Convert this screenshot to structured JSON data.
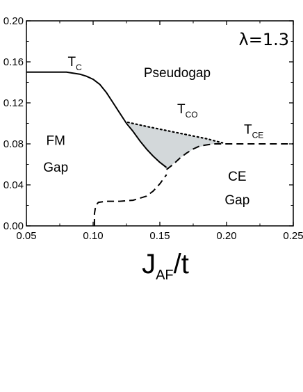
{
  "chart_data": {
    "type": "line",
    "xlim": [
      0.05,
      0.25
    ],
    "ylim": [
      0.0,
      0.2
    ],
    "x_ticks": [
      "0.05",
      "0.10",
      "0.15",
      "0.20",
      "0.25"
    ],
    "y_ticks": [
      "0.00",
      "0.04",
      "0.08",
      "0.12",
      "0.16",
      "0.20"
    ],
    "xlabel": {
      "main": "J",
      "sub": "AF",
      "suffix": "/t"
    },
    "parameter": {
      "symbol": "λ",
      "text": "=1.3"
    },
    "series": [
      {
        "label": {
          "main": "T",
          "sub": "C"
        },
        "style": "solid",
        "x": [
          0.05,
          0.06,
          0.07,
          0.08,
          0.09,
          0.095,
          0.1,
          0.105,
          0.11,
          0.115,
          0.12,
          0.125,
          0.13,
          0.135,
          0.14,
          0.145,
          0.15,
          0.155
        ],
        "y": [
          0.15,
          0.15,
          0.15,
          0.15,
          0.148,
          0.146,
          0.143,
          0.138,
          0.13,
          0.12,
          0.11,
          0.1,
          0.092,
          0.083,
          0.075,
          0.068,
          0.062,
          0.057
        ]
      },
      {
        "label": {
          "main": "T",
          "sub": "CO"
        },
        "style": "dotted",
        "x": [
          0.126,
          0.14,
          0.155,
          0.17,
          0.185,
          0.197
        ],
        "y": [
          0.101,
          0.097,
          0.093,
          0.089,
          0.085,
          0.081
        ]
      },
      {
        "label": {
          "main": "T",
          "sub": "CE"
        },
        "style": "dashed",
        "x": [
          0.155,
          0.16,
          0.165,
          0.17,
          0.175,
          0.18,
          0.185,
          0.19,
          0.2,
          0.21,
          0.22,
          0.23,
          0.24,
          0.25
        ],
        "y": [
          0.055,
          0.06,
          0.066,
          0.071,
          0.075,
          0.078,
          0.079,
          0.08,
          0.08,
          0.08,
          0.08,
          0.08,
          0.08,
          0.08
        ]
      },
      {
        "label": null,
        "style": "dashed",
        "x": [
          0.101,
          0.101,
          0.102,
          0.104,
          0.11,
          0.12,
          0.13,
          0.14,
          0.145,
          0.15,
          0.155
        ],
        "y": [
          0.0,
          0.012,
          0.02,
          0.023,
          0.024,
          0.024,
          0.025,
          0.029,
          0.034,
          0.041,
          0.05
        ]
      }
    ],
    "shaded_region": {
      "fill": "#d3d8da",
      "x": [
        0.126,
        0.197,
        0.185,
        0.175,
        0.165,
        0.155,
        0.15,
        0.145,
        0.14,
        0.135,
        0.13
      ],
      "y": [
        0.101,
        0.081,
        0.079,
        0.075,
        0.066,
        0.055,
        0.062,
        0.068,
        0.075,
        0.083,
        0.092
      ]
    },
    "region_labels": [
      {
        "text": "Pseudogap",
        "x": 0.163,
        "y": 0.145
      },
      {
        "text": "FM",
        "x": 0.072,
        "y": 0.079
      },
      {
        "text": "Gap",
        "x": 0.072,
        "y": 0.053
      },
      {
        "text": "CE",
        "x": 0.208,
        "y": 0.044
      },
      {
        "text": "Gap",
        "x": 0.208,
        "y": 0.021
      }
    ],
    "grid": false,
    "legend": "none"
  }
}
